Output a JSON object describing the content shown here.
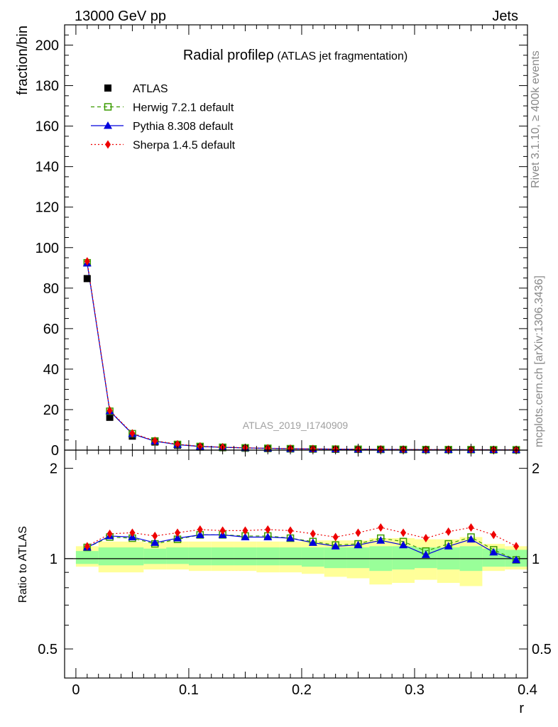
{
  "header": {
    "left": "13000 GeV pp",
    "right": "Jets"
  },
  "side_text": {
    "rivet": "Rivet 3.1.10, ≥ 400k events",
    "mcplots": "mcplots.cern.ch [arXiv:1306.3436]"
  },
  "watermark": "ATLAS_2019_I1740909",
  "chart_data": [
    {
      "type": "line",
      "title": "Radial profileρ (ATLAS jet fragmentation)",
      "title_main": "Radial profileρ",
      "title_sub": " (ATLAS jet fragmentation)",
      "ylabel": "fraction/bin",
      "xlabel": "",
      "xlim": [
        -0.01,
        0.4
      ],
      "ylim": [
        0,
        210
      ],
      "yticks": [
        0,
        20,
        40,
        60,
        80,
        100,
        120,
        140,
        160,
        180,
        200
      ],
      "x": [
        0.01,
        0.03,
        0.05,
        0.07,
        0.09,
        0.11,
        0.13,
        0.15,
        0.17,
        0.19,
        0.21,
        0.23,
        0.25,
        0.27,
        0.29,
        0.31,
        0.33,
        0.35,
        0.37,
        0.39
      ],
      "series": [
        {
          "name": "ATLAS",
          "color": "#000000",
          "marker": "square-filled",
          "values": [
            84.7,
            16.2,
            6.9,
            4.0,
            2.4,
            1.5,
            1.2,
            0.95,
            0.75,
            0.6,
            0.5,
            0.42,
            0.36,
            0.3,
            0.26,
            0.23,
            0.2,
            0.18,
            0.16,
            0.14
          ]
        },
        {
          "name": "Herwig 7.2.1 default",
          "color": "#3b9b00",
          "marker": "square-open",
          "dash": "5,4",
          "values": [
            92.5,
            19.2,
            8.1,
            4.5,
            2.8,
            1.8,
            1.4,
            1.1,
            0.88,
            0.7,
            0.57,
            0.48,
            0.41,
            0.35,
            0.3,
            0.25,
            0.23,
            0.21,
            0.17,
            0.14
          ]
        },
        {
          "name": "Pythia 8.308 default",
          "color": "#0000dd",
          "marker": "triangle",
          "values": [
            92.3,
            19.3,
            8.0,
            4.4,
            2.7,
            1.8,
            1.4,
            1.1,
            0.87,
            0.7,
            0.56,
            0.47,
            0.4,
            0.34,
            0.29,
            0.24,
            0.22,
            0.21,
            0.16,
            0.14
          ]
        },
        {
          "name": "Sherpa 1.4.5 default",
          "color": "#ee0000",
          "marker": "diamond",
          "dash": "2,3",
          "values": [
            93.2,
            19.6,
            8.3,
            4.6,
            2.9,
            1.9,
            1.45,
            1.15,
            0.93,
            0.73,
            0.6,
            0.5,
            0.44,
            0.38,
            0.32,
            0.27,
            0.25,
            0.22,
            0.19,
            0.16
          ]
        }
      ]
    },
    {
      "type": "line",
      "title": "",
      "ylabel": "Ratio to ATLAS",
      "xlabel": "r",
      "xlim": [
        -0.01,
        0.4
      ],
      "ylim": [
        0.4,
        2.3
      ],
      "yscale": "log",
      "yticks": [
        0.5,
        1,
        2
      ],
      "yticklabels": [
        "0.5",
        "1",
        "2"
      ],
      "xticks": [
        0,
        0.1,
        0.2,
        0.3,
        0.4
      ],
      "xticklabels": [
        "0",
        "0.1",
        "0.2",
        "0.3",
        "0.4"
      ],
      "bins": [
        [
          0.0,
          0.02
        ],
        [
          0.02,
          0.04
        ],
        [
          0.04,
          0.06
        ],
        [
          0.06,
          0.08
        ],
        [
          0.08,
          0.1
        ],
        [
          0.1,
          0.12
        ],
        [
          0.12,
          0.14
        ],
        [
          0.14,
          0.16
        ],
        [
          0.16,
          0.18
        ],
        [
          0.18,
          0.2
        ],
        [
          0.2,
          0.22
        ],
        [
          0.22,
          0.24
        ],
        [
          0.24,
          0.26
        ],
        [
          0.26,
          0.28
        ],
        [
          0.28,
          0.3
        ],
        [
          0.3,
          0.32
        ],
        [
          0.32,
          0.34
        ],
        [
          0.34,
          0.36
        ],
        [
          0.36,
          0.38
        ],
        [
          0.38,
          0.4
        ]
      ],
      "band_stat": {
        "color": "#99ff99",
        "lo": [
          0.96,
          0.95,
          0.95,
          0.96,
          0.96,
          0.95,
          0.95,
          0.95,
          0.95,
          0.95,
          0.94,
          0.93,
          0.93,
          0.91,
          0.92,
          0.93,
          0.92,
          0.91,
          0.94,
          0.94
        ],
        "hi": [
          1.06,
          1.09,
          1.09,
          1.08,
          1.09,
          1.09,
          1.09,
          1.09,
          1.09,
          1.09,
          1.09,
          1.09,
          1.09,
          1.1,
          1.1,
          1.09,
          1.09,
          1.1,
          1.08,
          1.07
        ]
      },
      "band_total": {
        "color": "#ffff99",
        "lo": [
          0.94,
          0.9,
          0.9,
          0.92,
          0.92,
          0.91,
          0.91,
          0.91,
          0.9,
          0.9,
          0.89,
          0.87,
          0.86,
          0.82,
          0.83,
          0.85,
          0.83,
          0.81,
          0.91,
          0.92
        ],
        "hi": [
          1.1,
          1.14,
          1.14,
          1.13,
          1.14,
          1.14,
          1.14,
          1.14,
          1.14,
          1.14,
          1.15,
          1.15,
          1.15,
          1.17,
          1.17,
          1.16,
          1.16,
          1.18,
          1.12,
          1.1
        ]
      },
      "series": [
        {
          "name": "Herwig 7.2.1 default",
          "color": "#3b9b00",
          "marker": "square-open",
          "dash": "5,4",
          "values": [
            1.09,
            1.18,
            1.17,
            1.12,
            1.16,
            1.2,
            1.2,
            1.19,
            1.19,
            1.17,
            1.14,
            1.11,
            1.12,
            1.17,
            1.14,
            1.06,
            1.12,
            1.18,
            1.07,
            0.99
          ]
        },
        {
          "name": "Pythia 8.308 default",
          "color": "#0000dd",
          "marker": "triangle",
          "values": [
            1.09,
            1.19,
            1.18,
            1.13,
            1.17,
            1.2,
            1.2,
            1.18,
            1.18,
            1.17,
            1.13,
            1.1,
            1.11,
            1.15,
            1.11,
            1.03,
            1.1,
            1.16,
            1.05,
            0.99
          ]
        },
        {
          "name": "Sherpa 1.4.5 default",
          "color": "#ee0000",
          "marker": "diamond",
          "dash": "2,3",
          "values": [
            1.1,
            1.21,
            1.22,
            1.19,
            1.22,
            1.25,
            1.24,
            1.24,
            1.25,
            1.24,
            1.21,
            1.18,
            1.22,
            1.27,
            1.22,
            1.17,
            1.23,
            1.27,
            1.2,
            1.1
          ]
        }
      ]
    }
  ]
}
